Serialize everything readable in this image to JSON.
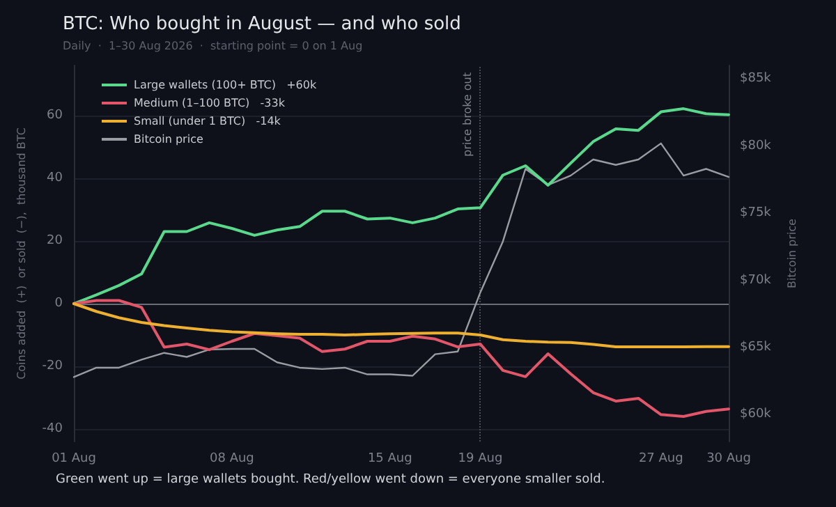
{
  "chart_data": {
    "type": "line",
    "title": "BTC: Who bought in August — and who sold",
    "subtitle": "Daily  ·  1–30 Aug 2026  ·  starting point = 0 on 1 Aug",
    "xlabel": null,
    "ylabel": "Coins added  (+)  or sold  (−),  thousand BTC",
    "y2label": "Bitcoin price",
    "x": [
      "2026-08-01",
      "2026-08-02",
      "2026-08-03",
      "2026-08-04",
      "2026-08-05",
      "2026-08-06",
      "2026-08-07",
      "2026-08-08",
      "2026-08-09",
      "2026-08-10",
      "2026-08-11",
      "2026-08-12",
      "2026-08-13",
      "2026-08-14",
      "2026-08-15",
      "2026-08-16",
      "2026-08-17",
      "2026-08-18",
      "2026-08-19",
      "2026-08-20",
      "2026-08-21",
      "2026-08-22",
      "2026-08-23",
      "2026-08-24",
      "2026-08-25",
      "2026-08-26",
      "2026-08-27",
      "2026-08-28",
      "2026-08-29",
      "2026-08-30"
    ],
    "series": [
      {
        "name": "Large wallets (100+ BTC)   +60k",
        "color": "#5ad88c",
        "values": [
          0,
          2.8,
          5.8,
          9.5,
          23,
          23,
          25.8,
          24,
          21.8,
          23.5,
          24.6,
          29.5,
          29.5,
          27,
          27.3,
          25.8,
          27.3,
          30.2,
          30.6,
          41,
          44,
          37.8,
          44.8,
          51.7,
          55.8,
          55.3,
          61.2,
          62.2,
          60.6,
          60.3
        ]
      },
      {
        "name": "Medium (1–100 BTC)   -33k",
        "color": "#e2566a",
        "values": [
          0,
          1,
          1,
          -1.2,
          -13.9,
          -12.9,
          -14.7,
          -12,
          -9.5,
          -10.2,
          -11,
          -15.3,
          -14.5,
          -12,
          -12,
          -10.4,
          -11.3,
          -13.8,
          -12.9,
          -21.3,
          -23.3,
          -16,
          -22.4,
          -28.4,
          -31.1,
          -30.2,
          -35.4,
          -36,
          -34.4,
          -33.6
        ]
      },
      {
        "name": "Small (under 1 BTC)   -14k",
        "color": "#eeb030",
        "values": [
          0,
          -2.5,
          -4.5,
          -6,
          -7,
          -7.8,
          -8.5,
          -9,
          -9.3,
          -9.6,
          -9.8,
          -9.8,
          -10,
          -9.8,
          -9.6,
          -9.5,
          -9.4,
          -9.4,
          -10,
          -11.5,
          -12,
          -12.3,
          -12.4,
          -13,
          -13.8,
          -13.8,
          -13.8,
          -13.8,
          -13.7,
          -13.7
        ]
      },
      {
        "name": "Bitcoin price",
        "color": "#9a9ca3",
        "axis": "y2",
        "values": [
          62.8,
          63.5,
          63.5,
          64.1,
          64.6,
          64.3,
          64.85,
          64.9,
          64.9,
          63.9,
          63.5,
          63.4,
          63.5,
          63,
          63,
          62.9,
          64.5,
          64.7,
          69.1,
          72.9,
          78.3,
          77.1,
          77.8,
          79,
          78.6,
          79,
          80.2,
          77.8,
          78.3,
          77.7
        ]
      }
    ],
    "xlim": [
      "2026-08-01",
      "2026-08-30"
    ],
    "xticks": [
      {
        "value": "2026-08-01",
        "label": "01 Aug"
      },
      {
        "value": "2026-08-08",
        "label": "08 Aug"
      },
      {
        "value": "2026-08-15",
        "label": "15 Aug"
      },
      {
        "value": "2026-08-19",
        "label": "19 Aug"
      },
      {
        "value": "2026-08-27",
        "label": "27 Aug"
      },
      {
        "value": "2026-08-30",
        "label": "30 Aug"
      }
    ],
    "ylim": [
      -44,
      76
    ],
    "yticks": [
      -40,
      -20,
      0,
      20,
      40,
      60
    ],
    "y2lim": [
      58,
      86
    ],
    "y2ticks": [
      {
        "value": 60,
        "label": "$60k"
      },
      {
        "value": 65,
        "label": "$65k"
      },
      {
        "value": 70,
        "label": "$70k"
      },
      {
        "value": 75,
        "label": "$75k"
      },
      {
        "value": 80,
        "label": "$80k"
      },
      {
        "value": 85,
        "label": "$85k"
      }
    ],
    "ref_lines": [
      {
        "axis": "y",
        "value": 0,
        "label": null,
        "color": "#6b6e76",
        "line_style": "solid"
      },
      {
        "axis": "x",
        "value": "2026-08-19",
        "label": "price broke out",
        "color": "#4a4d55",
        "line_style": "dotted"
      }
    ],
    "annotations": [
      "Green went up = large wallets bought. Red/yellow went down = everyone smaller sold."
    ],
    "grid": "y",
    "legend": "top left",
    "marker": "none",
    "line_style": "solid"
  }
}
